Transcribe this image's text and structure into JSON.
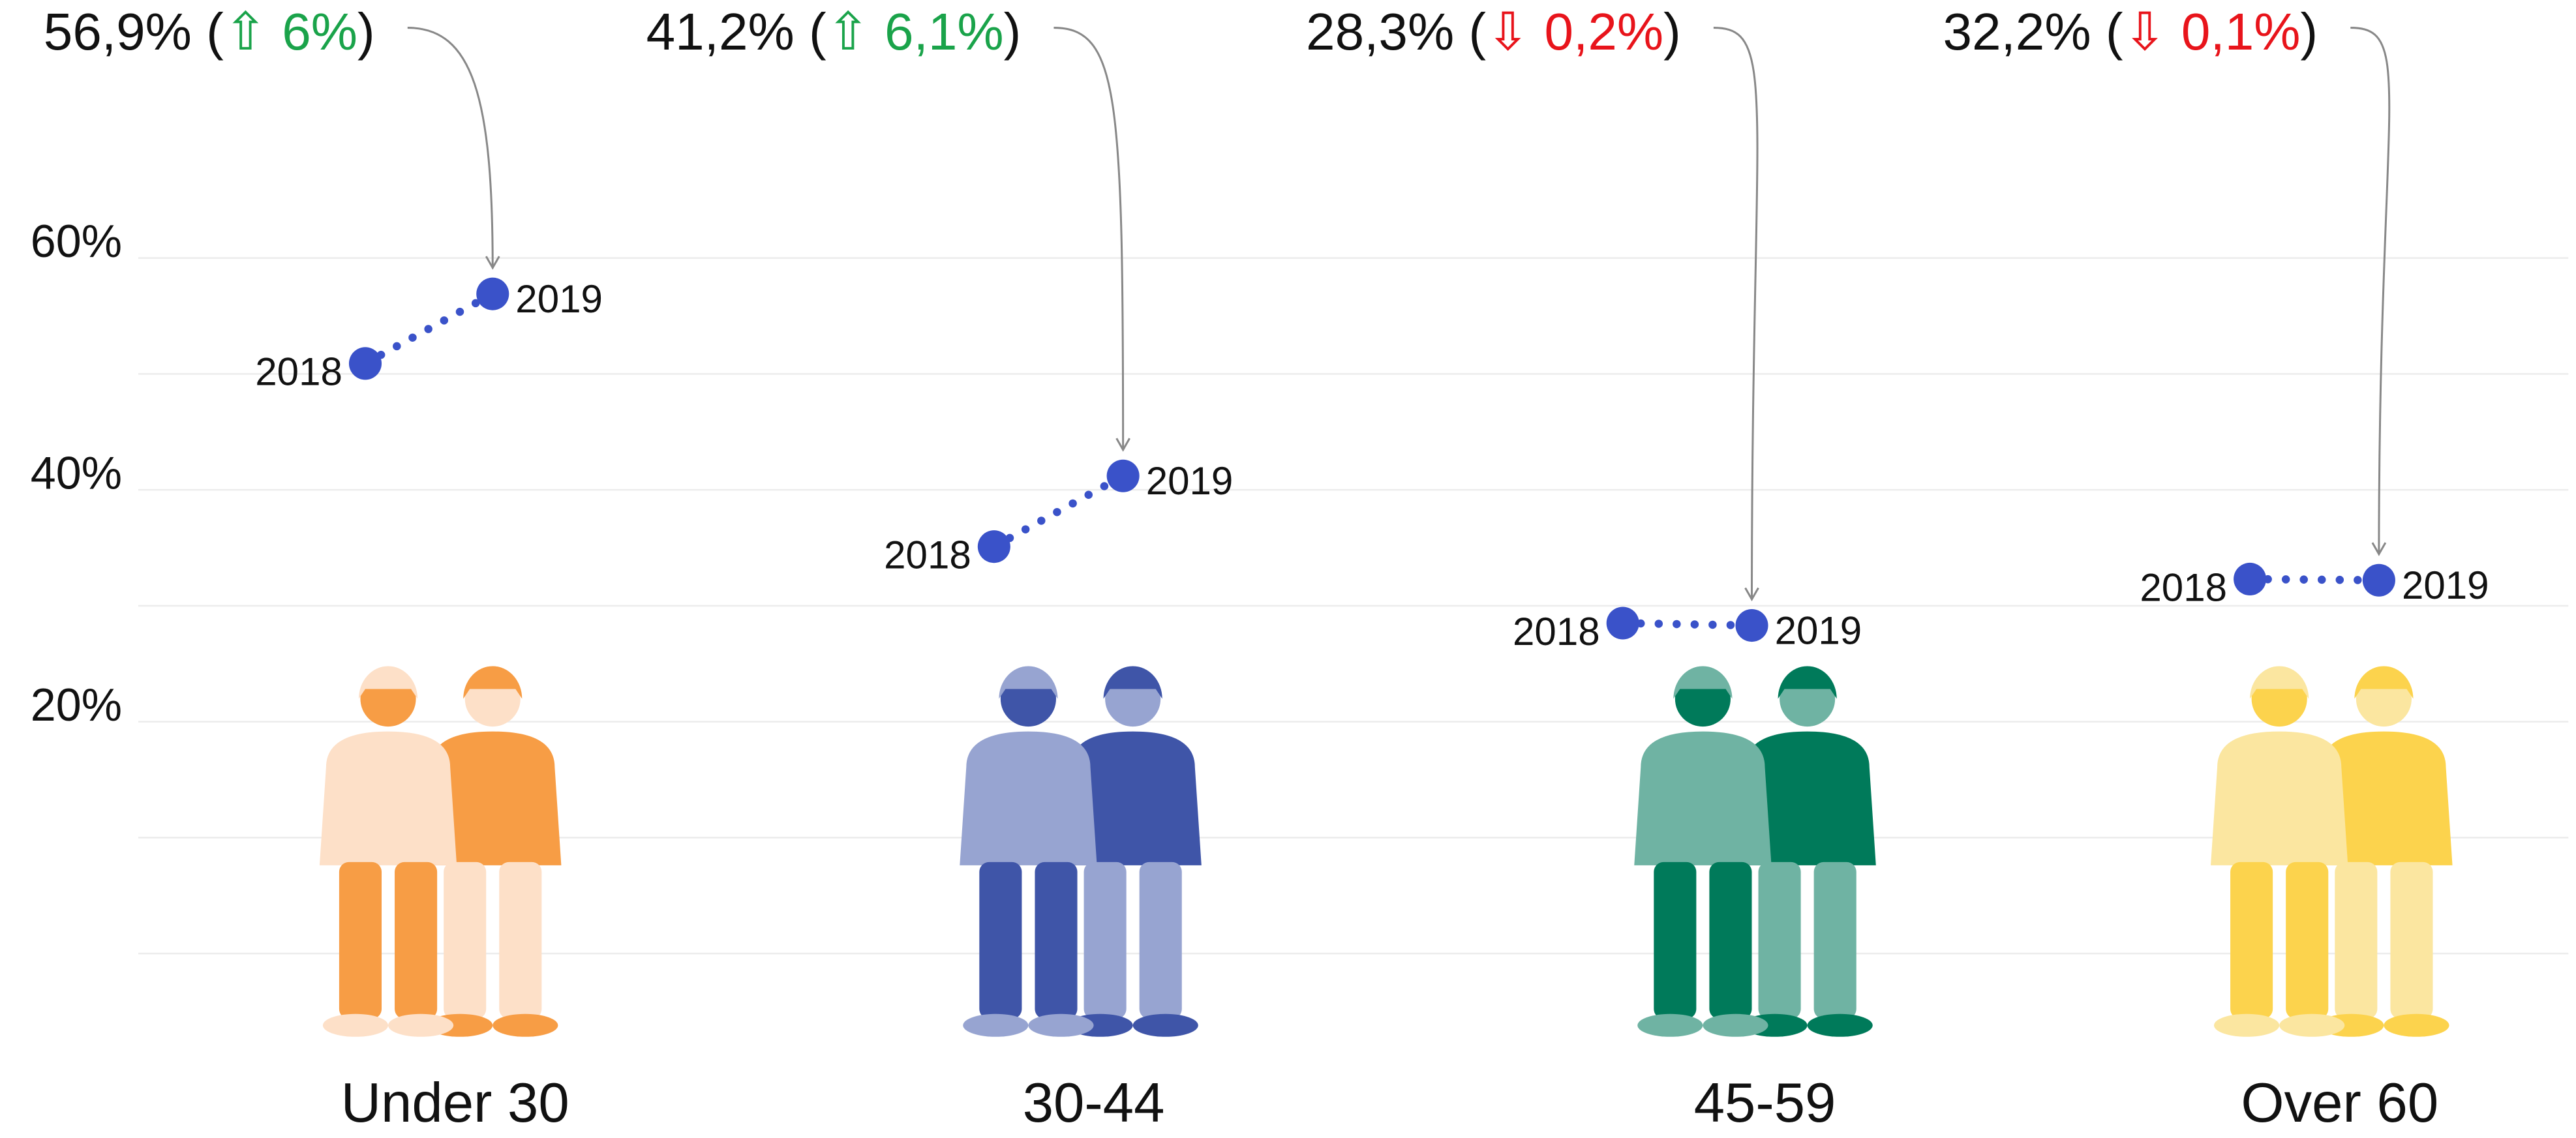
{
  "chart_data": {
    "type": "dumbbell",
    "ylim": [
      0,
      60
    ],
    "yticks": [
      {
        "value": 20,
        "label": "20%"
      },
      {
        "value": 40,
        "label": "40%"
      },
      {
        "value": 60,
        "label": "60%"
      }
    ],
    "grid_values": [
      0,
      10,
      20,
      30,
      40,
      50,
      60
    ],
    "grid": true,
    "color": "#3a52c9",
    "panels": [
      {
        "category": "Under 30",
        "x": [
          "2018",
          "2019"
        ],
        "values": [
          50.9,
          56.9
        ],
        "annotation": {
          "prefix": "56,9% (",
          "change": "⇧ 6%",
          "suffix": ")",
          "color": "#1aa34a"
        }
      },
      {
        "category": "30-44",
        "x": [
          "2018",
          "2019"
        ],
        "values": [
          35.1,
          41.2
        ],
        "annotation": {
          "prefix": "41,2% (",
          "change": "⇧ 6,1%",
          "suffix": ")",
          "color": "#1aa34a"
        }
      },
      {
        "category": "45-59",
        "x": [
          "2018",
          "2019"
        ],
        "values": [
          28.5,
          28.3
        ],
        "annotation": {
          "prefix": "28,3% (",
          "change": "⇩ 0,2%",
          "suffix": ")",
          "color": "#e8141b"
        }
      },
      {
        "category": "Over 60",
        "x": [
          "2018",
          "2019"
        ],
        "values": [
          32.3,
          32.2
        ],
        "annotation": {
          "prefix": "32,2% (",
          "change": "⇩ 0,1%",
          "suffix": ")",
          "color": "#e8141b"
        }
      }
    ]
  }
}
